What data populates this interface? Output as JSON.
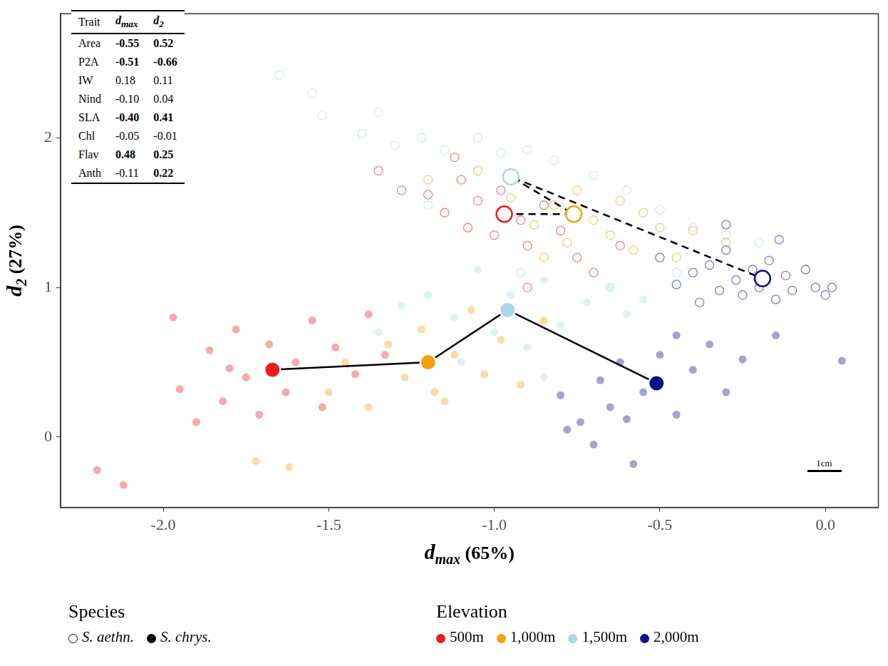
{
  "chart_data": {
    "type": "scatter",
    "x_label": {
      "text": "d",
      "sub": "max",
      "suffix": " (65%)"
    },
    "y_label": {
      "text": "d",
      "sub": "2",
      "suffix": " (27%)"
    },
    "xlim": [
      -2.31,
      0.16
    ],
    "ylim": [
      -0.47,
      2.83
    ],
    "xticks": [
      {
        "value": -2,
        "label": "-2.0"
      },
      -1.5,
      {
        "value": -1,
        "label": "-1.0"
      },
      -0.5,
      {
        "value": 0,
        "label": "0.0"
      }
    ],
    "yticks": [
      0,
      1,
      2
    ],
    "grid": false,
    "legend": "bottom",
    "legend_titles": {
      "species": "Species",
      "elevation": "Elevation"
    },
    "species": [
      {
        "name": "S. aethn.",
        "marker": "open",
        "line_style": "dashed"
      },
      {
        "name": "S. chrys.",
        "marker": "filled",
        "line_style": "solid"
      }
    ],
    "elevations": [
      {
        "name": "500m",
        "color": "#ee1c1c"
      },
      {
        "name": "1,000m",
        "color": "#f5a20a"
      },
      {
        "name": "1,500m",
        "color": "#a9d9ea"
      },
      {
        "name": "2,000m",
        "color": "#0d108a"
      }
    ],
    "series": [
      {
        "species": "S. chrys.",
        "elevation": "500m",
        "centroid": [
          -1.67,
          0.45
        ],
        "points": [
          [
            -2.2,
            -0.22
          ],
          [
            -1.97,
            0.8
          ],
          [
            -1.95,
            0.32
          ],
          [
            -1.9,
            0.1
          ],
          [
            -1.86,
            0.58
          ],
          [
            -1.82,
            0.24
          ],
          [
            -1.78,
            0.72
          ],
          [
            -1.75,
            0.4
          ],
          [
            -1.71,
            0.15
          ],
          [
            -1.68,
            0.62
          ],
          [
            -1.63,
            0.3
          ],
          [
            -1.6,
            0.5
          ],
          [
            -1.55,
            0.78
          ],
          [
            -1.52,
            0.2
          ],
          [
            -1.48,
            0.6
          ],
          [
            -1.42,
            0.42
          ],
          [
            -1.38,
            0.82
          ],
          [
            -1.33,
            0.55
          ],
          [
            -2.12,
            -0.32
          ],
          [
            -1.8,
            0.46
          ]
        ]
      },
      {
        "species": "S. chrys.",
        "elevation": "1,000m",
        "centroid": [
          -1.2,
          0.5
        ],
        "points": [
          [
            -1.72,
            -0.16
          ],
          [
            -1.62,
            -0.2
          ],
          [
            -1.5,
            0.3
          ],
          [
            -1.45,
            0.5
          ],
          [
            -1.38,
            0.2
          ],
          [
            -1.32,
            0.62
          ],
          [
            -1.27,
            0.4
          ],
          [
            -1.22,
            0.72
          ],
          [
            -1.18,
            0.3
          ],
          [
            -1.12,
            0.55
          ],
          [
            -1.07,
            0.85
          ],
          [
            -1.03,
            0.42
          ],
          [
            -0.98,
            0.65
          ],
          [
            -0.92,
            0.35
          ],
          [
            -0.85,
            0.78
          ],
          [
            -1.15,
            0.24
          ]
        ]
      },
      {
        "species": "S. chrys.",
        "elevation": "1,500m",
        "centroid": [
          -0.96,
          0.85
        ],
        "points": [
          [
            -1.35,
            0.7
          ],
          [
            -1.28,
            0.88
          ],
          [
            -1.2,
            0.95
          ],
          [
            -1.12,
            0.8
          ],
          [
            -1.05,
            1.12
          ],
          [
            -1.0,
            0.7
          ],
          [
            -0.95,
            0.95
          ],
          [
            -0.9,
            0.6
          ],
          [
            -0.85,
            1.05
          ],
          [
            -0.8,
            0.75
          ],
          [
            -0.72,
            0.9
          ],
          [
            -0.65,
            1.0
          ],
          [
            -0.6,
            0.82
          ],
          [
            -0.55,
            0.92
          ],
          [
            -1.1,
            0.5
          ],
          [
            -0.85,
            0.4
          ]
        ]
      },
      {
        "species": "S. chrys.",
        "elevation": "2,000m",
        "centroid": [
          -0.51,
          0.36
        ],
        "points": [
          [
            -0.8,
            0.28
          ],
          [
            -0.78,
            0.05
          ],
          [
            -0.74,
            0.1
          ],
          [
            -0.7,
            -0.05
          ],
          [
            -0.68,
            0.38
          ],
          [
            -0.65,
            0.2
          ],
          [
            -0.62,
            0.5
          ],
          [
            -0.58,
            -0.18
          ],
          [
            -0.55,
            0.3
          ],
          [
            -0.5,
            0.55
          ],
          [
            -0.45,
            0.15
          ],
          [
            -0.4,
            0.45
          ],
          [
            -0.35,
            0.62
          ],
          [
            -0.3,
            0.3
          ],
          [
            -0.25,
            0.52
          ],
          [
            -0.15,
            0.68
          ],
          [
            -0.45,
            0.68
          ],
          [
            0.05,
            0.51
          ],
          [
            -0.6,
            0.12
          ]
        ]
      },
      {
        "species": "S. aethn.",
        "elevation": "500m",
        "centroid": [
          -0.97,
          1.49
        ],
        "points": [
          [
            -1.35,
            1.78
          ],
          [
            -1.28,
            1.65
          ],
          [
            -1.2,
            1.62
          ],
          [
            -1.15,
            1.5
          ],
          [
            -1.1,
            1.72
          ],
          [
            -1.08,
            1.4
          ],
          [
            -1.05,
            1.58
          ],
          [
            -1.0,
            1.35
          ],
          [
            -0.98,
            1.65
          ],
          [
            -0.92,
            1.45
          ],
          [
            -0.9,
            1.28
          ],
          [
            -0.85,
            1.55
          ],
          [
            -0.8,
            1.38
          ],
          [
            -0.75,
            1.2
          ],
          [
            -0.7,
            1.1
          ],
          [
            -0.9,
            1.0
          ],
          [
            -1.12,
            1.87
          ],
          [
            -0.62,
            1.28
          ]
        ]
      },
      {
        "species": "S. aethn.",
        "elevation": "1,000m",
        "centroid": [
          -0.76,
          1.49
        ],
        "points": [
          [
            -1.2,
            1.72
          ],
          [
            -1.05,
            1.78
          ],
          [
            -0.95,
            1.6
          ],
          [
            -0.88,
            1.42
          ],
          [
            -0.82,
            1.55
          ],
          [
            -0.78,
            1.3
          ],
          [
            -0.75,
            1.65
          ],
          [
            -0.7,
            1.45
          ],
          [
            -0.65,
            1.35
          ],
          [
            -0.62,
            1.58
          ],
          [
            -0.58,
            1.25
          ],
          [
            -0.55,
            1.5
          ],
          [
            -0.5,
            1.4
          ],
          [
            -0.45,
            1.2
          ],
          [
            -0.4,
            1.38
          ],
          [
            -0.3,
            1.3
          ],
          [
            -0.85,
            1.2
          ]
        ]
      },
      {
        "species": "S. aethn.",
        "elevation": "1,500m",
        "centroid": [
          -0.95,
          1.74
        ],
        "points": [
          [
            -1.65,
            2.42
          ],
          [
            -1.55,
            2.3
          ],
          [
            -1.52,
            2.15
          ],
          [
            -1.4,
            2.03
          ],
          [
            -1.35,
            2.17
          ],
          [
            -1.3,
            1.95
          ],
          [
            -1.22,
            2.0
          ],
          [
            -1.15,
            1.92
          ],
          [
            -1.05,
            2.0
          ],
          [
            -0.98,
            1.9
          ],
          [
            -0.9,
            1.92
          ],
          [
            -0.82,
            1.85
          ],
          [
            -0.7,
            1.75
          ],
          [
            -0.6,
            1.65
          ],
          [
            -0.5,
            1.52
          ],
          [
            -0.4,
            1.4
          ],
          [
            -0.3,
            1.35
          ],
          [
            -0.2,
            1.3
          ],
          [
            -0.45,
            1.1
          ],
          [
            -0.65,
            1.0
          ],
          [
            -0.92,
            1.1
          ],
          [
            -1.2,
            1.55
          ]
        ]
      },
      {
        "species": "S. aethn.",
        "elevation": "2,000m",
        "centroid": [
          -0.19,
          1.06
        ],
        "points": [
          [
            -0.5,
            1.2
          ],
          [
            -0.45,
            1.02
          ],
          [
            -0.4,
            1.1
          ],
          [
            -0.38,
            0.9
          ],
          [
            -0.35,
            1.15
          ],
          [
            -0.32,
            0.98
          ],
          [
            -0.3,
            1.25
          ],
          [
            -0.27,
            1.05
          ],
          [
            -0.25,
            0.95
          ],
          [
            -0.22,
            1.12
          ],
          [
            -0.2,
            1.0
          ],
          [
            -0.17,
            1.18
          ],
          [
            -0.15,
            0.92
          ],
          [
            -0.12,
            1.08
          ],
          [
            -0.1,
            0.98
          ],
          [
            -0.06,
            1.12
          ],
          [
            -0.03,
            1.0
          ],
          [
            0.0,
            0.95
          ],
          [
            0.02,
            1.0
          ],
          [
            -0.14,
            1.32
          ],
          [
            -0.3,
            1.42
          ]
        ]
      }
    ],
    "table": {
      "header": [
        "Trait",
        {
          "text": "d",
          "sub": "max"
        },
        {
          "text": "d",
          "sub": "2"
        }
      ],
      "rows": [
        {
          "trait": "Area",
          "values": [
            "-0.55",
            "0.52"
          ],
          "bold": [
            true,
            true
          ]
        },
        {
          "trait": "P2A",
          "values": [
            "-0.51",
            "-0.66"
          ],
          "bold": [
            true,
            true
          ]
        },
        {
          "trait": "IW",
          "values": [
            "0.18",
            "0.11"
          ],
          "bold": [
            false,
            false
          ]
        },
        {
          "trait": "Nind",
          "values": [
            "-0.10",
            "0.04"
          ],
          "bold": [
            false,
            false
          ]
        },
        {
          "trait": "SLA",
          "values": [
            "-0.40",
            "0.41"
          ],
          "bold": [
            true,
            true
          ]
        },
        {
          "trait": "Chl",
          "values": [
            "-0.05",
            "-0.01"
          ],
          "bold": [
            false,
            false
          ]
        },
        {
          "trait": "Flav",
          "values": [
            "0.48",
            "0.25"
          ],
          "bold": [
            true,
            true
          ]
        },
        {
          "trait": "Anth",
          "values": [
            "-0.11",
            "0.22"
          ],
          "bold": [
            false,
            true
          ]
        }
      ]
    },
    "scale_bar": "1cm"
  }
}
